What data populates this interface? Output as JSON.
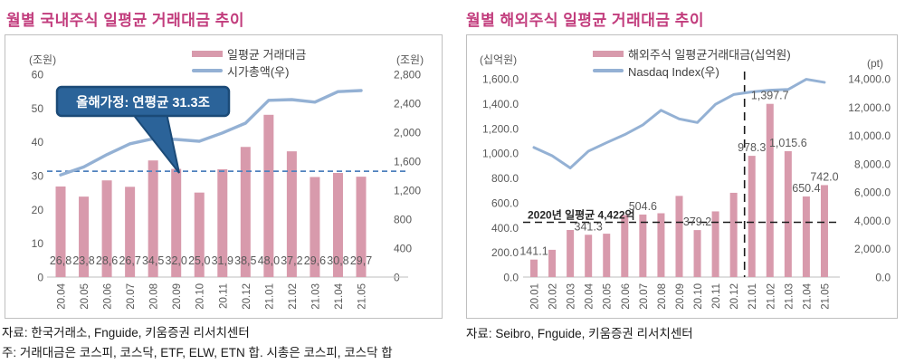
{
  "colors": {
    "title": "#c23d7d",
    "bar": "#d89aac",
    "line": "#94b1d4",
    "axis_text": "#595959",
    "bar_label_text": "#595959",
    "panel_border": "#bfbfbf",
    "axis_line": "#c9c9c9",
    "blue_dash": "#4f81bd",
    "black_dash": "#1a1a1a",
    "annotation_text": "#262626",
    "callout_fill": "#2b6399",
    "callout_border": "#1b4a77",
    "callout_text": "#ffffff"
  },
  "left_panel": {
    "title": "월별 국내주식 일평균 거래대금 추이",
    "unit_left": "(조원)",
    "unit_right": "(조원)",
    "legend": [
      {
        "label": "일평균 거래대금",
        "type": "bar"
      },
      {
        "label": "시가총액(우)",
        "type": "line"
      }
    ],
    "footer1": "자료: 한국거래소, Fnguide,  키움증권 리서치센터",
    "footer2": "주: 거래대금은  코스피,  코스닥, ETF, ELW, ETN  합.  시총은  코스피,  코스닥  합",
    "chart_data": {
      "type": "bar+line",
      "categories": [
        "20.04",
        "20.05",
        "20.06",
        "20.07",
        "20.08",
        "20.09",
        "20.10",
        "20.11",
        "20.12",
        "21.01",
        "21.02",
        "21.03",
        "21.04",
        "21.05"
      ],
      "series": [
        {
          "name": "일평균 거래대금",
          "type": "bar",
          "axis": "left",
          "values": [
            26.8,
            23.8,
            28.6,
            26.7,
            34.5,
            32.0,
            25.0,
            31.9,
            38.5,
            48.0,
            37.2,
            29.6,
            30.8,
            29.7
          ]
        },
        {
          "name": "시가총액(우)",
          "type": "line",
          "axis": "right",
          "values": [
            1410,
            1520,
            1690,
            1840,
            1910,
            1900,
            1875,
            1990,
            2125,
            2440,
            2450,
            2415,
            2560,
            2575
          ]
        }
      ],
      "bar_labels": [
        "26,8",
        "23,8",
        "28,6",
        "26,7",
        "34,5",
        "32,0",
        "25,0",
        "31,9",
        "38,5",
        "48,0",
        "37,2",
        "29,6",
        "30,8",
        "29,7"
      ],
      "left_axis": {
        "min": 0,
        "max": 60,
        "step": 10,
        "ticks": [
          "60",
          "50",
          "40",
          "30",
          "20",
          "10",
          "0"
        ],
        "title": "(조원)"
      },
      "right_axis": {
        "min": 0,
        "max": 2800,
        "step": 400,
        "ticks": [
          "2,800",
          "2,400",
          "2,000",
          "1,600",
          "1,200",
          "800",
          "400",
          "0"
        ],
        "title": "(조원)"
      },
      "avg_line": {
        "value": 31.3,
        "style": "blue-dashed"
      },
      "callout": {
        "text": "올해가정: 연평균 31.3조"
      },
      "grid": false,
      "legend_position": "top-center"
    }
  },
  "right_panel": {
    "title": "월별 해외주식 일평균 거래대금 추이",
    "unit_left": "(십억원)",
    "unit_right": "(pt)",
    "legend": [
      {
        "label": "해외주식 일평균거래대금(십억원)",
        "type": "bar"
      },
      {
        "label": "Nasdaq Index(우)",
        "type": "line"
      }
    ],
    "footer1": "자료: Seibro, Fnguide,  키움증권 리서치센터",
    "chart_data": {
      "type": "bar+line",
      "categories": [
        "20.01",
        "20.02",
        "20.03",
        "20.04",
        "20.05",
        "20.06",
        "20.07",
        "20.08",
        "20.09",
        "20.10",
        "20.11",
        "20.12",
        "21.01",
        "21.02",
        "21.03",
        "21.04",
        "21.05"
      ],
      "series": [
        {
          "name": "해외주식 일평균거래대금(십억원)",
          "type": "bar",
          "axis": "left",
          "values": [
            141.1,
            220,
            380,
            341.3,
            350,
            500,
            504.6,
            515,
            655,
            379.2,
            530,
            680,
            978.3,
            1397.7,
            1015.6,
            650.4,
            742.0
          ]
        },
        {
          "name": "Nasdaq Index(우)",
          "type": "line",
          "axis": "right",
          "values": [
            9151,
            8567,
            7700,
            8890,
            9490,
            10059,
            10745,
            11775,
            11168,
            10912,
            12199,
            12888,
            13071,
            13192,
            13247,
            13963,
            13749
          ]
        }
      ],
      "bar_labels": [
        {
          "index": 0,
          "text": "141.1"
        },
        {
          "index": 3,
          "text": "341.3"
        },
        {
          "index": 6,
          "text": "504.6"
        },
        {
          "index": 9,
          "text": "379.2"
        },
        {
          "index": 12,
          "text": "978.3"
        },
        {
          "index": 13,
          "text": "1,397.7"
        },
        {
          "index": 14,
          "text": "1,015.6"
        },
        {
          "index": 15,
          "text": "650.4"
        },
        {
          "index": 16,
          "text": "742.0"
        }
      ],
      "left_axis": {
        "min": 0,
        "max": 1600,
        "step": 200,
        "ticks": [
          "1,600.0",
          "1,400.0",
          "1,200.0",
          "1,000.0",
          "800.0",
          "600.0",
          "400.0",
          "200.0",
          "0.0"
        ],
        "title": "(십억원)"
      },
      "right_axis": {
        "min": 0,
        "max": 14000,
        "step": 2000,
        "ticks": [
          "14,000.0",
          "12,000.0",
          "10,000.0",
          "8,000.0",
          "6,000.0",
          "4,000.0",
          "2,000.0",
          "0.0"
        ],
        "title": "(pt)"
      },
      "avg_line": {
        "value": 442.2,
        "label": "2020년 일평균 4,422억",
        "style": "black-dashed"
      },
      "vline_between": [
        "20.12",
        "21.01"
      ],
      "grid": false,
      "legend_position": "top-center"
    }
  }
}
